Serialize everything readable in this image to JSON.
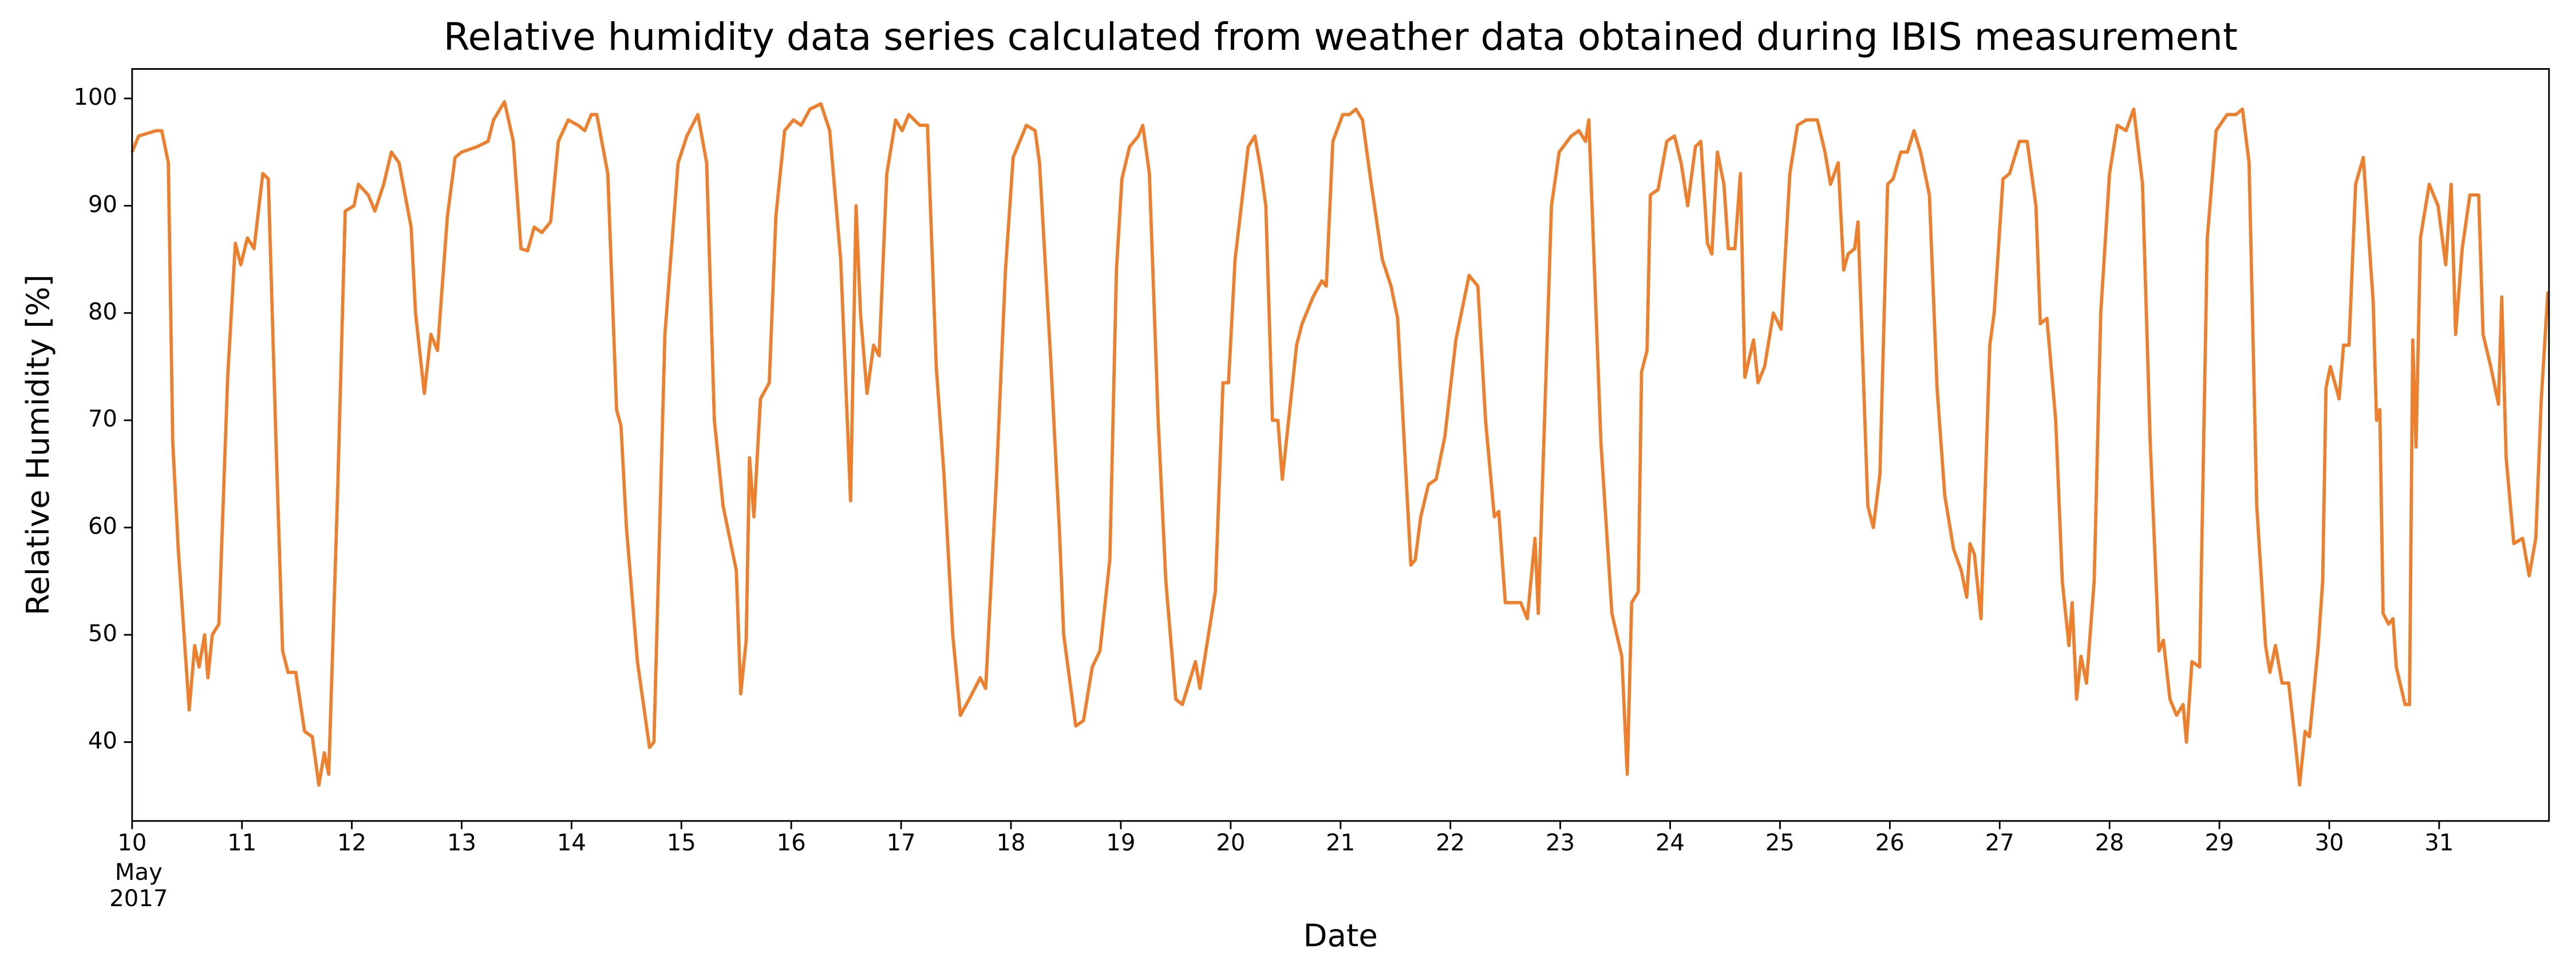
{
  "chart_data": {
    "type": "line",
    "title": "Relative humidity data series calculated from weather data obtained during IBIS measurement",
    "x_label": "Date",
    "y_label": "Relative Humidity [%]",
    "xlim": [
      10,
      32
    ],
    "ylim": [
      32.65,
      102.75
    ],
    "xticks": [
      10,
      11,
      12,
      13,
      14,
      15,
      16,
      17,
      18,
      19,
      20,
      21,
      22,
      23,
      24,
      25,
      26,
      27,
      28,
      29,
      30,
      31
    ],
    "x_tick_sublabels": [
      "May",
      "2017"
    ],
    "yticks": [
      40,
      50,
      60,
      70,
      80,
      90,
      100
    ],
    "grid": false,
    "series": [
      {
        "color": "#ee7f2d",
        "x": [
          10.0,
          10.06,
          10.22,
          10.27,
          10.33,
          10.37,
          10.42,
          10.52,
          10.57,
          10.61,
          10.66,
          10.69,
          10.73,
          10.79,
          10.87,
          10.94,
          10.99,
          11.05,
          11.11,
          11.19,
          11.24,
          11.31,
          11.37,
          11.42,
          11.49,
          11.57,
          11.64,
          11.7,
          11.75,
          11.79,
          11.87,
          11.94,
          12.02,
          12.06,
          12.15,
          12.21,
          12.29,
          12.36,
          12.43,
          12.54,
          12.58,
          12.66,
          12.72,
          12.78,
          12.87,
          12.94,
          13.0,
          13.14,
          13.24,
          13.29,
          13.39,
          13.47,
          13.54,
          13.6,
          13.66,
          13.73,
          13.81,
          13.88,
          13.97,
          14.06,
          14.12,
          14.18,
          14.23,
          14.33,
          14.41,
          14.45,
          14.5,
          14.6,
          14.71,
          14.75,
          14.85,
          14.97,
          15.05,
          15.15,
          15.23,
          15.3,
          15.38,
          15.5,
          15.54,
          15.59,
          15.62,
          15.66,
          15.72,
          15.8,
          15.86,
          15.94,
          16.02,
          16.09,
          16.17,
          16.27,
          16.35,
          16.45,
          16.51,
          16.54,
          16.59,
          16.63,
          16.69,
          16.75,
          16.8,
          16.87,
          16.95,
          17.01,
          17.07,
          17.17,
          17.24,
          17.32,
          17.39,
          17.47,
          17.54,
          17.62,
          17.72,
          17.77,
          17.87,
          17.95,
          18.02,
          18.14,
          18.22,
          18.26,
          18.36,
          18.44,
          18.48,
          18.59,
          18.66,
          18.74,
          18.81,
          18.9,
          18.96,
          19.01,
          19.08,
          19.16,
          19.2,
          19.26,
          19.34,
          19.41,
          19.5,
          19.56,
          19.68,
          19.72,
          19.86,
          19.93,
          19.98,
          20.04,
          20.16,
          20.22,
          20.28,
          20.32,
          20.38,
          20.43,
          20.47,
          20.6,
          20.65,
          20.75,
          20.83,
          20.87,
          20.93,
          21.02,
          21.08,
          21.14,
          21.2,
          21.28,
          21.38,
          21.46,
          21.52,
          21.59,
          21.64,
          21.68,
          21.73,
          21.8,
          21.87,
          21.95,
          22.05,
          22.17,
          22.25,
          22.32,
          22.4,
          22.44,
          22.5,
          22.58,
          22.64,
          22.7,
          22.77,
          22.8,
          22.92,
          22.99,
          23.1,
          23.17,
          23.23,
          23.26,
          23.37,
          23.47,
          23.56,
          23.61,
          23.65,
          23.71,
          23.74,
          23.79,
          23.82,
          23.89,
          23.97,
          24.04,
          24.1,
          24.16,
          24.23,
          24.28,
          24.34,
          24.38,
          24.43,
          24.49,
          24.53,
          24.59,
          24.64,
          24.68,
          24.76,
          24.8,
          24.86,
          24.94,
          25.01,
          25.09,
          25.16,
          25.24,
          25.34,
          25.41,
          25.46,
          25.53,
          25.58,
          25.62,
          25.68,
          25.71,
          25.8,
          25.85,
          25.91,
          25.98,
          26.03,
          26.1,
          26.16,
          26.22,
          26.28,
          26.36,
          26.43,
          26.5,
          26.58,
          26.65,
          26.7,
          26.73,
          26.77,
          26.83,
          26.91,
          26.95,
          27.03,
          27.09,
          27.18,
          27.25,
          27.33,
          27.37,
          27.43,
          27.51,
          27.57,
          27.63,
          27.66,
          27.7,
          27.74,
          27.79,
          27.86,
          27.92,
          28.0,
          28.07,
          28.15,
          28.22,
          28.3,
          28.37,
          28.45,
          28.49,
          28.55,
          28.61,
          28.67,
          28.7,
          28.75,
          28.82,
          28.89,
          28.97,
          29.07,
          29.15,
          29.21,
          29.27,
          29.34,
          29.42,
          29.46,
          29.51,
          29.57,
          29.63,
          29.69,
          29.73,
          29.78,
          29.82,
          29.9,
          29.94,
          29.97,
          30.01,
          30.09,
          30.13,
          30.18,
          30.24,
          30.31,
          30.36,
          30.4,
          30.43,
          30.46,
          30.49,
          30.54,
          30.58,
          30.61,
          30.69,
          30.73,
          30.76,
          30.79,
          30.83,
          30.91,
          30.99,
          31.06,
          31.11,
          31.15,
          31.21,
          31.28,
          31.36,
          31.4,
          31.47,
          31.54,
          31.57,
          31.61,
          31.68,
          31.76,
          31.82,
          31.88,
          31.93,
          31.99
        ],
        "values": [
          95,
          96.5,
          97,
          97,
          94,
          68,
          58,
          43,
          49,
          47,
          50,
          46,
          50,
          51,
          74,
          86.5,
          84.5,
          87,
          86,
          93,
          92.5,
          68,
          48.5,
          46.5,
          46.5,
          41,
          40.5,
          36,
          39,
          37,
          63,
          89.5,
          90,
          92,
          91,
          89.5,
          92,
          95,
          94,
          88,
          80,
          72.5,
          78,
          76.5,
          89,
          94.5,
          95,
          95.5,
          96,
          98,
          99.7,
          96,
          86,
          85.8,
          88,
          87.5,
          88.5,
          96,
          98,
          97.5,
          97,
          98.5,
          98.5,
          93,
          71,
          69.5,
          60,
          47.5,
          39.5,
          40,
          78,
          94,
          96.5,
          98.5,
          94,
          70,
          62,
          56,
          44.5,
          49.5,
          66.5,
          61,
          72,
          73.5,
          89,
          97,
          98,
          97.5,
          99,
          99.5,
          97,
          85,
          70,
          62.5,
          90,
          80,
          72.5,
          77,
          76,
          93,
          98,
          97,
          98.5,
          97.5,
          97.5,
          75,
          65,
          50,
          42.5,
          44,
          46,
          45,
          65,
          84,
          94.5,
          97.5,
          97,
          94,
          76,
          60,
          50,
          41.5,
          42,
          47,
          48.5,
          57,
          84,
          92.5,
          95.5,
          96.5,
          97.5,
          93,
          70,
          55,
          44,
          43.5,
          47.5,
          45,
          54,
          73.5,
          73.5,
          85,
          95.5,
          96.5,
          93,
          90,
          70,
          70,
          64.5,
          77,
          79,
          81.5,
          83,
          82.5,
          96,
          98.5,
          98.5,
          99,
          98,
          92,
          85,
          82.5,
          79.5,
          66,
          56.5,
          57,
          61,
          64,
          64.5,
          68.5,
          77.5,
          83.5,
          82.5,
          70,
          61,
          61.5,
          53,
          53,
          53,
          51.5,
          59,
          52,
          90,
          95,
          96.5,
          97,
          96,
          98,
          68,
          52,
          48,
          37,
          53,
          54,
          74.5,
          76.5,
          91,
          91.5,
          96,
          96.5,
          94,
          90,
          95.5,
          96,
          86.5,
          85.5,
          95,
          92,
          86,
          86,
          93,
          74,
          77.5,
          73.5,
          75,
          80,
          78.5,
          93,
          97.5,
          98,
          98,
          95,
          92,
          94,
          84,
          85.5,
          86,
          88.5,
          62,
          60,
          65,
          92,
          92.5,
          95,
          95,
          97,
          95,
          91,
          73,
          63,
          58,
          56,
          53.5,
          58.5,
          57.5,
          51.5,
          77,
          80,
          92.5,
          93,
          96,
          96,
          90,
          79,
          79.5,
          70,
          55,
          49,
          53,
          44,
          48,
          45.5,
          55,
          80,
          93,
          97.5,
          97,
          99,
          92,
          68,
          48.5,
          49.5,
          44,
          42.5,
          43.5,
          40,
          47.5,
          47,
          87,
          97,
          98.5,
          98.5,
          99,
          94,
          62,
          49,
          46.5,
          49,
          45.5,
          45.5,
          40,
          36,
          41,
          40.5,
          49,
          55,
          73,
          75,
          72,
          77,
          77,
          92,
          94.5,
          87,
          81,
          70,
          71,
          52,
          51,
          51.5,
          47,
          43.5,
          43.5,
          77.5,
          67.5,
          87,
          92,
          90,
          84.5,
          92,
          78,
          86,
          91,
          91,
          78,
          75,
          71.5,
          81.5,
          66.5,
          58.5,
          59,
          55.5,
          59,
          72,
          82
        ]
      }
    ]
  }
}
